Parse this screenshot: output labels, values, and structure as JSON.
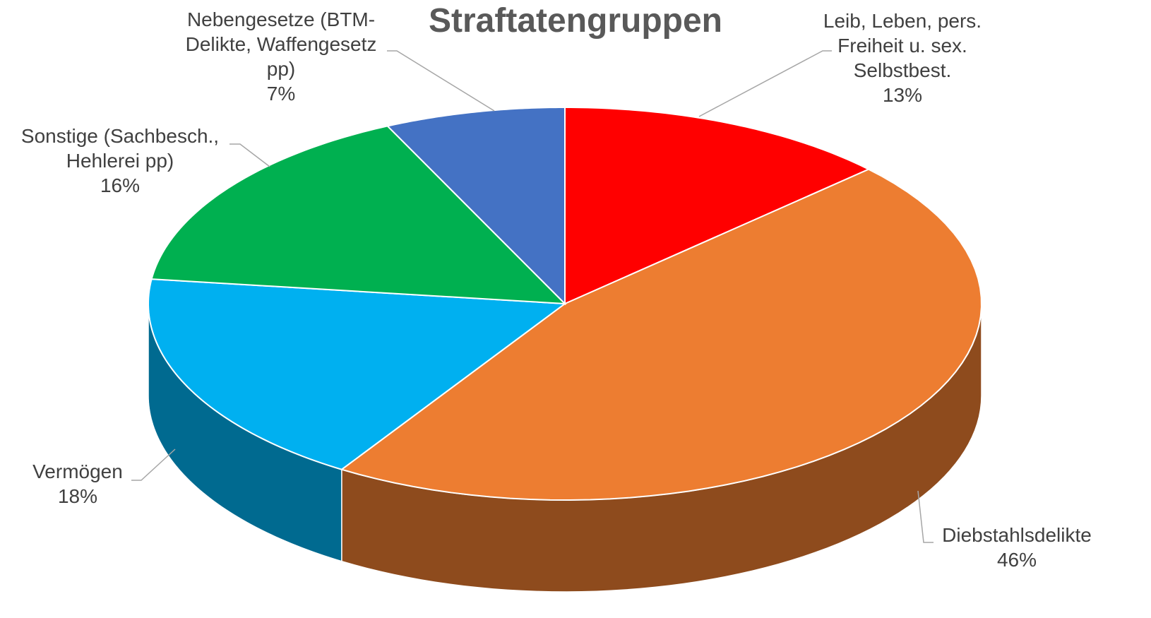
{
  "chart_data": {
    "type": "pie",
    "title": "Straftatengruppen",
    "categories": [
      "Leib, Leben, pers. Freiheit u. sex. Selbstbest.",
      "Diebstahlsdelikte",
      "Vermögen",
      "Sonstige (Sachbesch., Hehlerei pp)",
      "Nebengesetze (BTM-Delikte, Waffengesetz pp)"
    ],
    "values": [
      13,
      46,
      18,
      16,
      7
    ],
    "value_labels": [
      "13%",
      "46%",
      "18%",
      "16%",
      "7%"
    ],
    "colors": [
      "#ff0000",
      "#ed7d31",
      "#00b0f0",
      "#00b050",
      "#4472c4"
    ]
  }
}
